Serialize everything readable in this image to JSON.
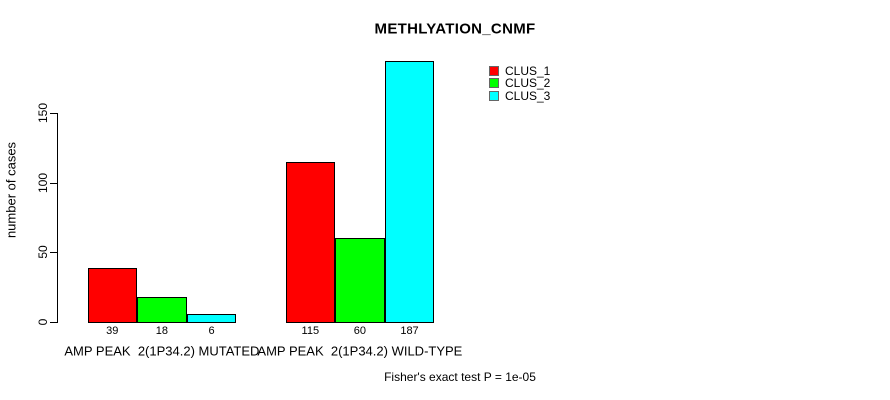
{
  "title": "METHLYATION_CNMF",
  "footer": "Fisher's exact test P = 1e-05",
  "colors": {
    "background": "#ffffff",
    "text": "#000000",
    "bar_border": "#000000",
    "clus_1": "#ff0000",
    "clus_2": "#00ff00",
    "clus_3": "#00ffff"
  },
  "chart_data": {
    "type": "bar",
    "title": "METHLYATION_CNMF",
    "xlabel": "",
    "ylabel": "number of cases",
    "ylim": [
      0,
      150
    ],
    "yticks": [
      0,
      50,
      100,
      150
    ],
    "grid": false,
    "legend_position": "top-right",
    "bar_value_labels_shown": true,
    "categories": [
      "AMP PEAK  2(1P34.2) MUTATED",
      "AMP PEAK  2(1P34.2) WILD-TYPE"
    ],
    "series": [
      {
        "name": "CLUS_1",
        "color": "#ff0000",
        "values": [
          39,
          115
        ]
      },
      {
        "name": "CLUS_2",
        "color": "#00ff00",
        "values": [
          18,
          60
        ]
      },
      {
        "name": "CLUS_3",
        "color": "#00ffff",
        "values": [
          6,
          187
        ]
      }
    ],
    "annotation": "Fisher's exact test P = 1e-05"
  }
}
